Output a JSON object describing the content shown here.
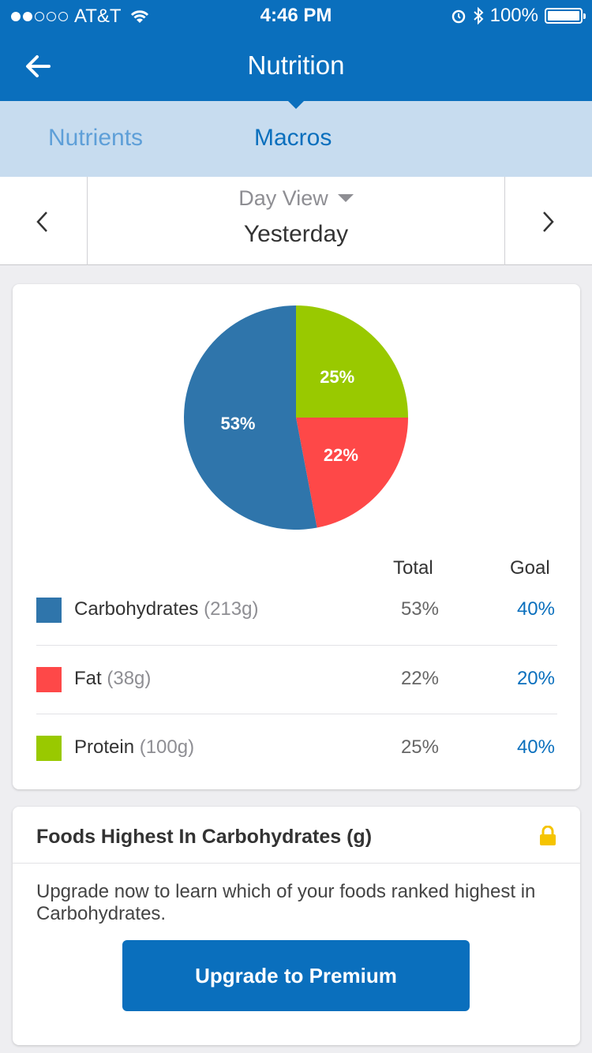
{
  "status": {
    "carrier": "AT&T",
    "time": "4:46 PM",
    "battery": "100%"
  },
  "header": {
    "title": "Nutrition",
    "back_icon": "back-arrow-icon"
  },
  "tabs": [
    {
      "label": "Nutrients"
    },
    {
      "label": "Macros",
      "selected": true
    }
  ],
  "date": {
    "view_mode": "Day View",
    "day": "Yesterday"
  },
  "chart_data": {
    "type": "pie",
    "slices": [
      {
        "label": "Carbohydrates",
        "value": 53,
        "color": "#2f75ab"
      },
      {
        "label": "Fat",
        "value": 22,
        "color": "#fe4848"
      },
      {
        "label": "Protein",
        "value": 25,
        "color": "#99c900"
      }
    ],
    "data_labels": [
      "53%",
      "22%",
      "25%"
    ]
  },
  "macros": {
    "total_header": "Total",
    "goal_header": "Goal",
    "rows": [
      {
        "name": "Carbohydrates",
        "amount": "(213g)",
        "total": "53%",
        "goal": "40%",
        "color": "#2f75ab"
      },
      {
        "name": "Fat",
        "amount": "(38g)",
        "total": "22%",
        "goal": "20%",
        "color": "#fe4848"
      },
      {
        "name": "Protein",
        "amount": "(100g)",
        "total": "25%",
        "goal": "40%",
        "color": "#99c900"
      }
    ]
  },
  "foods": {
    "title": "Foods Highest In Carbohydrates (g)",
    "message": "Upgrade now to learn which of your foods ranked highest in Carbohydrates.",
    "button": "Upgrade to Premium",
    "lock_color": "#f5c400"
  },
  "colors": {
    "brand": "#0a6fbd",
    "tab_bar": "#c7dcef"
  }
}
